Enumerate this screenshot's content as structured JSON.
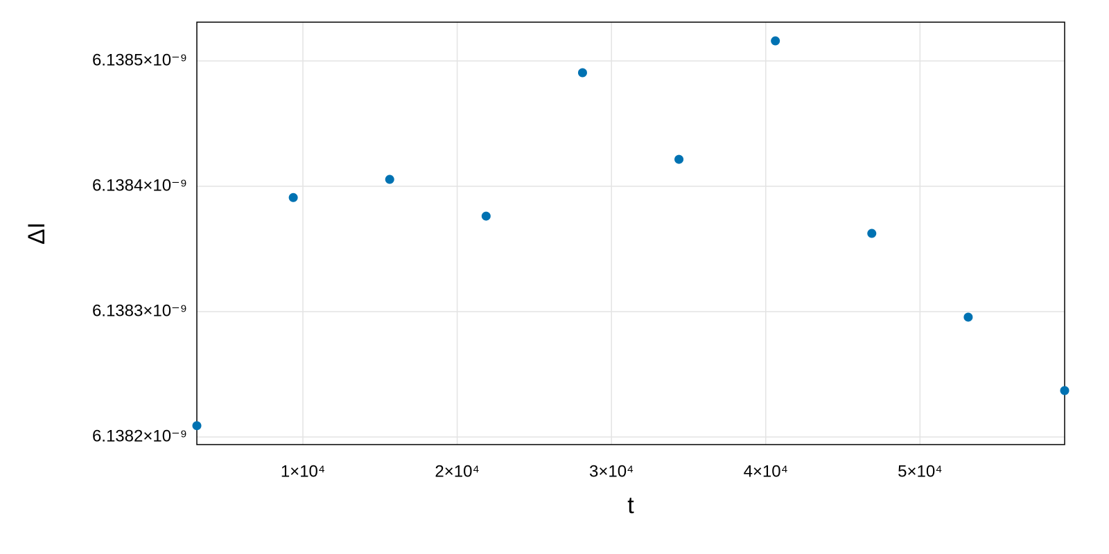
{
  "chart_data": {
    "type": "scatter",
    "xlabel": "t",
    "ylabel": "ΔI",
    "x": [
      3125,
      9375,
      15625,
      21875,
      28125,
      34375,
      40625,
      46875,
      53125,
      59375
    ],
    "series": [
      {
        "color": "#0072b2",
        "values": [
          6.138209e-09,
          6.138391e-09,
          6.1384055e-09,
          6.1383762e-09,
          6.1384906e-09,
          6.1384215e-09,
          6.138516e-09,
          6.1383624e-09,
          6.1382956e-09,
          6.138237e-09
        ]
      }
    ],
    "xlim": [
      3125,
      59375
    ],
    "xticks": [
      {
        "value": 10000,
        "label": "1×10⁴"
      },
      {
        "value": 20000,
        "label": "2×10⁴"
      },
      {
        "value": 30000,
        "label": "3×10⁴"
      },
      {
        "value": 40000,
        "label": "4×10⁴"
      },
      {
        "value": 50000,
        "label": "5×10⁴"
      }
    ],
    "ylim": [
      6.13819392e-09,
      6.13853094e-09
    ],
    "yticks": [
      {
        "value": 6.1382e-09,
        "label": "6.1382×10⁻⁹"
      },
      {
        "value": 6.1383e-09,
        "label": "6.1383×10⁻⁹"
      },
      {
        "value": 6.1384e-09,
        "label": "6.1384×10⁻⁹"
      },
      {
        "value": 6.1385e-09,
        "label": "6.1385×10⁻⁹"
      }
    ],
    "grid": true
  }
}
